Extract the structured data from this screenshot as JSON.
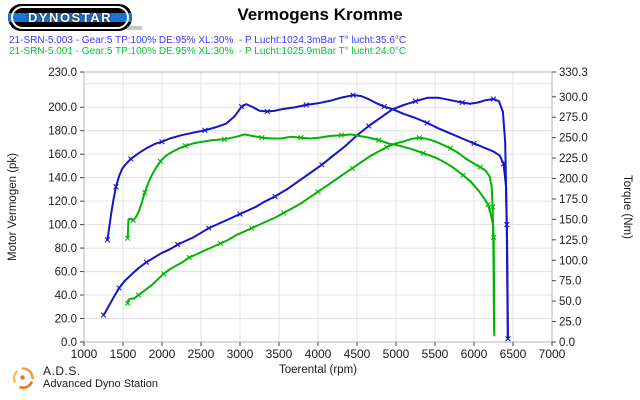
{
  "header": {
    "logo_text": "Dynostar",
    "title": "Vermogens Kromme"
  },
  "legend": [
    {
      "label": "21-SRN-5.003 - Gear:5 TP:100% DE:95% XL:30%  - P Lucht:1024.3mBar T° lucht:35.6°C",
      "color": "#3838ff"
    },
    {
      "label": "21-SRN-5.001 - Gear:5 TP:100% DE:95% XL:30%  - P Lucht:1025.9mBar T° lucht:24.0°C",
      "color": "#00c535"
    }
  ],
  "footer": {
    "abbr": "A.D.S.",
    "name": "Advanced Dyno Station"
  },
  "colors": {
    "run_003": "#1414cc",
    "run_001": "#00b400",
    "grid": "#e0e0e0",
    "frame": "#b4b4b4",
    "tick": "#444444",
    "label": "#1a1a1a",
    "ads_orange": "#e87722",
    "ads_amber": "#f0a030",
    "ads_gold": "#f6c24a"
  },
  "chart_data": {
    "type": "line",
    "title": "Vermogens Kromme",
    "xlabel": "Toerental (rpm)",
    "ylabel_left": "Motor Vermogen (pk)",
    "ylabel_right": "Torque (Nm)",
    "x_range": [
      1000,
      7000
    ],
    "yleft_range": [
      0,
      230
    ],
    "yright_range": [
      0,
      330.3
    ],
    "grid": true,
    "legend_position": "top-left",
    "x_ticks": [
      [
        1000,
        "1000"
      ],
      [
        1500,
        "1500"
      ],
      [
        2000,
        "2000"
      ],
      [
        2500,
        "2500"
      ],
      [
        3000,
        "3000"
      ],
      [
        3500,
        "3500"
      ],
      [
        4000,
        "4000"
      ],
      [
        4500,
        "4500"
      ],
      [
        5000,
        "5000"
      ],
      [
        5500,
        "5500"
      ],
      [
        6000,
        "6000"
      ],
      [
        6500,
        "6500"
      ],
      [
        7000,
        "7000"
      ]
    ],
    "yleft_ticks": [
      [
        0,
        "0.0"
      ],
      [
        20,
        "20.0"
      ],
      [
        40,
        "40.0"
      ],
      [
        60,
        "60.0"
      ],
      [
        80,
        "80.0"
      ],
      [
        100,
        "100.0"
      ],
      [
        120,
        "120.0"
      ],
      [
        140,
        "140.0"
      ],
      [
        160,
        "160.0"
      ],
      [
        180,
        "180.0"
      ],
      [
        200,
        "200.0"
      ],
      [
        230,
        "230.0"
      ]
    ],
    "yright_ticks": [
      [
        0,
        "0.0"
      ],
      [
        25,
        "25.0"
      ],
      [
        50,
        "50.0"
      ],
      [
        75,
        "75.0"
      ],
      [
        100,
        "100.0"
      ],
      [
        125,
        "125.0"
      ],
      [
        150,
        "150.0"
      ],
      [
        175,
        "175.0"
      ],
      [
        200,
        "200.0"
      ],
      [
        225,
        "225.0"
      ],
      [
        250,
        "250.0"
      ],
      [
        275,
        "275.0"
      ],
      [
        300,
        "300.0"
      ],
      [
        330.3,
        "330.3"
      ]
    ],
    "grid_x": [
      1500,
      2000,
      2500,
      3000,
      3500,
      4000,
      4500,
      5000,
      5500,
      6000,
      6500
    ],
    "grid_yleft": [
      20,
      40,
      60,
      80,
      100,
      120,
      140,
      160,
      180,
      200,
      220
    ],
    "series": [
      {
        "name": "21-SRN-5.003 torque",
        "axis": "right",
        "color": "#1414cc",
        "unit": "Nm",
        "points": [
          [
            1300,
            125
          ],
          [
            1320,
            138
          ],
          [
            1350,
            158
          ],
          [
            1380,
            175
          ],
          [
            1410,
            190
          ],
          [
            1450,
            203
          ],
          [
            1490,
            212
          ],
          [
            1540,
            218
          ],
          [
            1600,
            224
          ],
          [
            1700,
            231
          ],
          [
            1800,
            237
          ],
          [
            1900,
            242
          ],
          [
            2000,
            245
          ],
          [
            2100,
            249
          ],
          [
            2250,
            253
          ],
          [
            2400,
            256
          ],
          [
            2550,
            259
          ],
          [
            2700,
            263
          ],
          [
            2820,
            267
          ],
          [
            2930,
            276
          ],
          [
            3020,
            288
          ],
          [
            3080,
            291
          ],
          [
            3150,
            288
          ],
          [
            3250,
            283
          ],
          [
            3350,
            282
          ],
          [
            3450,
            283
          ],
          [
            3550,
            285
          ],
          [
            3700,
            287
          ],
          [
            3850,
            290
          ],
          [
            4000,
            292
          ],
          [
            4150,
            295
          ],
          [
            4300,
            299
          ],
          [
            4450,
            302
          ],
          [
            4550,
            301
          ],
          [
            4650,
            297
          ],
          [
            4750,
            292
          ],
          [
            4850,
            288
          ],
          [
            4950,
            285
          ],
          [
            5100,
            279
          ],
          [
            5250,
            274
          ],
          [
            5400,
            268
          ],
          [
            5550,
            261
          ],
          [
            5700,
            255
          ],
          [
            5850,
            249
          ],
          [
            6000,
            243
          ],
          [
            6150,
            237
          ],
          [
            6250,
            233
          ],
          [
            6330,
            228
          ],
          [
            6380,
            218
          ],
          [
            6410,
            190
          ],
          [
            6425,
            120
          ],
          [
            6432,
            40
          ],
          [
            6435,
            4
          ]
        ]
      },
      {
        "name": "21-SRN-5.003 power",
        "axis": "left",
        "color": "#1414cc",
        "unit": "pk",
        "points": [
          [
            1250,
            23
          ],
          [
            1280,
            26
          ],
          [
            1320,
            31
          ],
          [
            1380,
            38
          ],
          [
            1450,
            46
          ],
          [
            1520,
            52
          ],
          [
            1600,
            57
          ],
          [
            1700,
            63
          ],
          [
            1800,
            68
          ],
          [
            1900,
            72
          ],
          [
            2000,
            76
          ],
          [
            2100,
            79
          ],
          [
            2200,
            83
          ],
          [
            2300,
            86
          ],
          [
            2400,
            89
          ],
          [
            2500,
            93
          ],
          [
            2600,
            97
          ],
          [
            2700,
            100
          ],
          [
            2800,
            103
          ],
          [
            2900,
            106
          ],
          [
            3000,
            109
          ],
          [
            3100,
            112
          ],
          [
            3200,
            115
          ],
          [
            3300,
            119
          ],
          [
            3450,
            124
          ],
          [
            3600,
            130
          ],
          [
            3750,
            137
          ],
          [
            3900,
            144
          ],
          [
            4050,
            151
          ],
          [
            4200,
            159
          ],
          [
            4350,
            167
          ],
          [
            4500,
            176
          ],
          [
            4650,
            184
          ],
          [
            4800,
            191
          ],
          [
            4950,
            198
          ],
          [
            5100,
            202
          ],
          [
            5250,
            205
          ],
          [
            5400,
            208
          ],
          [
            5550,
            208
          ],
          [
            5700,
            206
          ],
          [
            5850,
            204
          ],
          [
            5950,
            203
          ],
          [
            6050,
            204
          ],
          [
            6150,
            206
          ],
          [
            6250,
            207
          ],
          [
            6320,
            205
          ],
          [
            6370,
            196
          ],
          [
            6400,
            170
          ],
          [
            6420,
            100
          ],
          [
            6430,
            30
          ],
          [
            6435,
            3
          ]
        ]
      },
      {
        "name": "21-SRN-5.001 torque",
        "axis": "right",
        "color": "#00b400",
        "unit": "Nm",
        "points": [
          [
            1560,
            127
          ],
          [
            1565,
            140
          ],
          [
            1570,
            150
          ],
          [
            1600,
            151
          ],
          [
            1630,
            149
          ],
          [
            1660,
            152
          ],
          [
            1700,
            159
          ],
          [
            1740,
            170
          ],
          [
            1780,
            183
          ],
          [
            1830,
            196
          ],
          [
            1880,
            206
          ],
          [
            1930,
            214
          ],
          [
            1980,
            221
          ],
          [
            2040,
            227
          ],
          [
            2100,
            231
          ],
          [
            2200,
            236
          ],
          [
            2300,
            240
          ],
          [
            2400,
            243
          ],
          [
            2520,
            245
          ],
          [
            2650,
            247
          ],
          [
            2800,
            248
          ],
          [
            2950,
            251
          ],
          [
            3060,
            254
          ],
          [
            3160,
            252
          ],
          [
            3280,
            250
          ],
          [
            3400,
            249
          ],
          [
            3520,
            249
          ],
          [
            3650,
            251
          ],
          [
            3780,
            250
          ],
          [
            3900,
            249
          ],
          [
            4020,
            250
          ],
          [
            4150,
            252
          ],
          [
            4300,
            253
          ],
          [
            4420,
            254
          ],
          [
            4530,
            252
          ],
          [
            4650,
            250
          ],
          [
            4780,
            247
          ],
          [
            4900,
            243
          ],
          [
            5050,
            240
          ],
          [
            5200,
            236
          ],
          [
            5350,
            231
          ],
          [
            5500,
            226
          ],
          [
            5620,
            220
          ],
          [
            5740,
            213
          ],
          [
            5860,
            204
          ],
          [
            5960,
            196
          ],
          [
            6060,
            185
          ],
          [
            6130,
            176
          ],
          [
            6180,
            168
          ],
          [
            6210,
            158
          ],
          [
            6230,
            150
          ],
          [
            6245,
            143
          ],
          [
            6252,
            128
          ],
          [
            6258,
            60
          ],
          [
            6260,
            8
          ]
        ]
      },
      {
        "name": "21-SRN-5.001 power",
        "axis": "left",
        "color": "#00b400",
        "unit": "pk",
        "points": [
          [
            1560,
            33
          ],
          [
            1570,
            36
          ],
          [
            1600,
            37
          ],
          [
            1640,
            37
          ],
          [
            1700,
            40
          ],
          [
            1780,
            44
          ],
          [
            1860,
            48
          ],
          [
            1940,
            53
          ],
          [
            2020,
            58
          ],
          [
            2100,
            62
          ],
          [
            2180,
            65
          ],
          [
            2260,
            68
          ],
          [
            2350,
            72
          ],
          [
            2450,
            75
          ],
          [
            2550,
            78
          ],
          [
            2650,
            81
          ],
          [
            2750,
            84
          ],
          [
            2850,
            87
          ],
          [
            2950,
            91
          ],
          [
            3050,
            94
          ],
          [
            3150,
            97
          ],
          [
            3250,
            100
          ],
          [
            3350,
            103
          ],
          [
            3450,
            106
          ],
          [
            3560,
            110
          ],
          [
            3670,
            114
          ],
          [
            3780,
            118
          ],
          [
            3890,
            123
          ],
          [
            4000,
            128
          ],
          [
            4110,
            133
          ],
          [
            4220,
            138
          ],
          [
            4330,
            143
          ],
          [
            4440,
            148
          ],
          [
            4550,
            153
          ],
          [
            4660,
            158
          ],
          [
            4770,
            162
          ],
          [
            4880,
            166
          ],
          [
            4990,
            169
          ],
          [
            5100,
            171
          ],
          [
            5200,
            173
          ],
          [
            5300,
            174
          ],
          [
            5400,
            173
          ],
          [
            5500,
            171
          ],
          [
            5600,
            168
          ],
          [
            5700,
            165
          ],
          [
            5800,
            161
          ],
          [
            5900,
            156
          ],
          [
            6000,
            152
          ],
          [
            6080,
            149
          ],
          [
            6150,
            146
          ],
          [
            6200,
            141
          ],
          [
            6225,
            133
          ],
          [
            6240,
            115
          ],
          [
            6250,
            70
          ],
          [
            6256,
            10
          ]
        ]
      }
    ]
  }
}
